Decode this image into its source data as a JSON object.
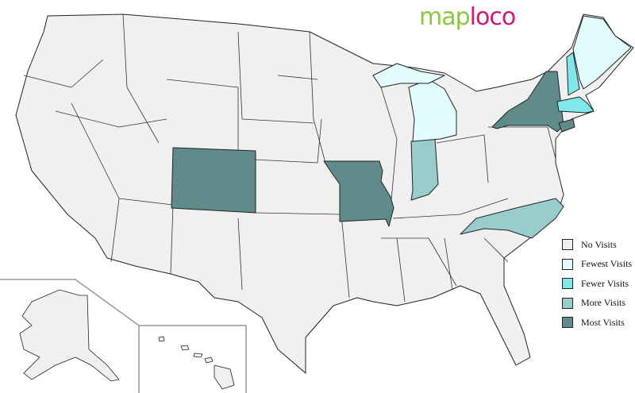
{
  "logo": {
    "part1": "map",
    "part2": "loco"
  },
  "legend": [
    {
      "label": "No Visits",
      "color": "#f0f0f0"
    },
    {
      "label": "Fewest Visits",
      "color": "#e2fdfd"
    },
    {
      "label": "Fewer Visits",
      "color": "#80e8e8"
    },
    {
      "label": "More Visits",
      "color": "#99cccc"
    },
    {
      "label": "Most Visits",
      "color": "#5f8c8a"
    }
  ],
  "states": [
    {
      "name": "Colorado",
      "category": "Most Visits"
    },
    {
      "name": "Missouri",
      "category": "Most Visits"
    },
    {
      "name": "New York",
      "category": "Most Visits"
    },
    {
      "name": "Connecticut",
      "category": "Most Visits"
    },
    {
      "name": "Indiana",
      "category": "More Visits"
    },
    {
      "name": "North Carolina",
      "category": "More Visits"
    },
    {
      "name": "New Hampshire",
      "category": "Fewer Visits"
    },
    {
      "name": "Massachusetts",
      "category": "Fewer Visits"
    },
    {
      "name": "Maine",
      "category": "Fewest Visits"
    },
    {
      "name": "Michigan",
      "category": "Fewest Visits"
    }
  ],
  "default_category": "No Visits"
}
